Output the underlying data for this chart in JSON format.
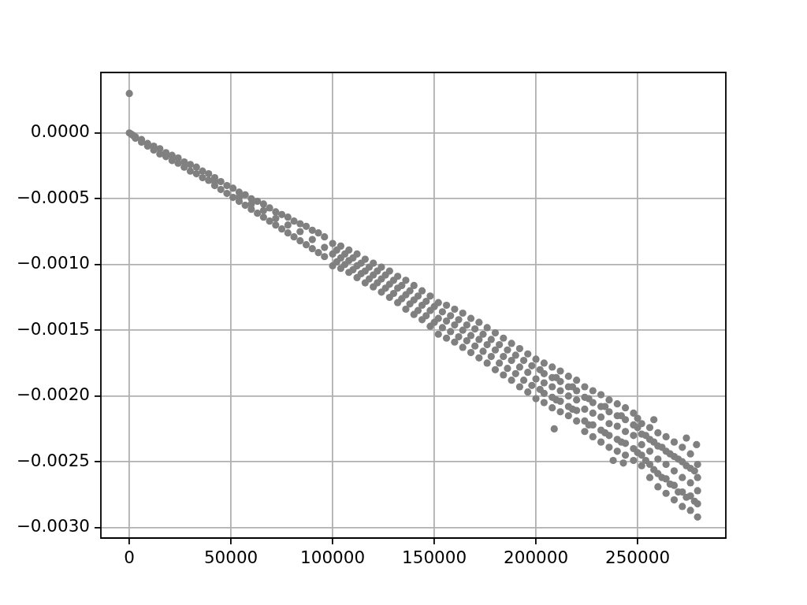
{
  "chart_data": {
    "type": "scatter",
    "color": "#808080",
    "marker": "circle",
    "grid": true,
    "xlim": [
      -14000,
      293400
    ],
    "ylim": [
      -0.00308,
      0.00046
    ],
    "xticks": [
      0,
      50000,
      100000,
      150000,
      200000,
      250000
    ],
    "yticks": [
      {
        "value": 0,
        "label": "0.0000"
      },
      {
        "value": -0.0005,
        "label": "−0.0005"
      },
      {
        "value": -0.001,
        "label": "−0.0010"
      },
      {
        "value": -0.0015,
        "label": "−0.0015"
      },
      {
        "value": -0.002,
        "label": "−0.0020"
      },
      {
        "value": -0.0025,
        "label": "−0.0025"
      },
      {
        "value": -0.003,
        "label": "−0.0030"
      }
    ],
    "x": [
      0,
      0,
      1000,
      2000,
      3000,
      3000,
      6000,
      6000,
      9000,
      9000,
      12000,
      12000,
      15000,
      15000,
      18000,
      18000,
      21000,
      21000,
      24000,
      24000,
      27000,
      27000,
      30000,
      30000,
      33000,
      33000,
      36000,
      36000,
      39000,
      39000,
      42000,
      42000,
      42000,
      45000,
      45000,
      48000,
      48000,
      51000,
      51000,
      54000,
      54000,
      54000,
      57000,
      57000,
      60000,
      60000,
      60000,
      63000,
      63000,
      66000,
      66000,
      66000,
      69000,
      69000,
      72000,
      72000,
      72000,
      75000,
      75000,
      78000,
      78000,
      78000,
      81000,
      81000,
      84000,
      84000,
      84000,
      87000,
      87000,
      90000,
      90000,
      90000,
      93000,
      93000,
      96000,
      96000,
      96000,
      100000,
      100000,
      100000,
      104000,
      104000,
      108000,
      108000,
      108000,
      112000,
      112000,
      116000,
      116000,
      116000,
      120000,
      120000,
      124000,
      124000,
      124000,
      128000,
      128000,
      132000,
      132000,
      132000,
      136000,
      136000,
      140000,
      140000,
      140000,
      144000,
      144000,
      148000,
      148000,
      148000,
      152000,
      152000,
      156000,
      156000,
      156000,
      160000,
      160000,
      164000,
      164000,
      164000,
      168000,
      168000,
      172000,
      172000,
      172000,
      176000,
      176000,
      180000,
      180000,
      180000,
      184000,
      184000,
      188000,
      188000,
      188000,
      192000,
      192000,
      196000,
      196000,
      196000,
      200000,
      200000,
      200000,
      204000,
      204000,
      208000,
      208000,
      208000,
      209000,
      212000,
      212000,
      216000,
      216000,
      216000,
      220000,
      220000,
      224000,
      224000,
      224000,
      228000,
      228000,
      232000,
      232000,
      232000,
      236000,
      236000,
      238000,
      240000,
      240000,
      240000,
      243000,
      244000,
      244000,
      248000,
      248000,
      248000,
      250000,
      252000,
      252000,
      252000,
      256000,
      256000,
      256000,
      258000,
      260000,
      260000,
      260000,
      264000,
      264000,
      264000,
      268000,
      268000,
      268000,
      272000,
      272000,
      272000,
      274000,
      276000,
      276000,
      276000,
      279000,
      279500,
      279500,
      279500,
      104000,
      112000,
      120000,
      128000,
      136000,
      144000,
      152000,
      160000,
      168000,
      176000,
      184000,
      192000,
      204000,
      212000,
      220000,
      228000,
      236000,
      244000,
      202000,
      202000,
      210000,
      210000,
      218000,
      218000,
      226000,
      226000,
      234000,
      234000,
      242000,
      242000,
      250000,
      250000,
      254000,
      254000,
      258000,
      258000,
      262000,
      262000,
      266000,
      266000,
      270000,
      270000,
      274000,
      274000,
      278000,
      278000,
      102000,
      102000,
      106000,
      106000,
      110000,
      110000,
      114000,
      114000,
      118000,
      118000,
      122000,
      122000,
      126000,
      126000,
      130000,
      130000,
      134000,
      134000,
      138000,
      138000,
      142000,
      142000,
      146000,
      146000,
      150000,
      150000,
      154000,
      154000,
      158000,
      158000,
      162000,
      162000,
      166000,
      166000,
      170000,
      170000,
      174000,
      174000,
      178000,
      178000,
      182000,
      182000,
      186000,
      186000,
      190000,
      190000,
      194000,
      194000,
      198000,
      198000,
      204000,
      204000,
      208000,
      208000,
      212000,
      212000,
      216000,
      216000,
      220000,
      220000,
      224000,
      224000,
      228000,
      228000,
      232000,
      232000,
      236000,
      236000,
      240000,
      240000,
      244000,
      244000,
      248000,
      248000,
      252000,
      252000,
      256000,
      256000,
      260000,
      260000,
      264000,
      264000,
      268000,
      268000,
      272000,
      272000,
      276000,
      276000,
      279500,
      279500
    ],
    "values": [
      0.0003,
      0,
      -1e-05,
      -2e-05,
      -3e-05,
      -4e-05,
      -5e-05,
      -7e-05,
      -8e-05,
      -0.0001,
      -0.0001,
      -0.00013,
      -0.00012,
      -0.00016,
      -0.00015,
      -0.00018,
      -0.00017,
      -0.00021,
      -0.00019,
      -0.00023,
      -0.00022,
      -0.00026,
      -0.00024,
      -0.00029,
      -0.00026,
      -0.00031,
      -0.00029,
      -0.00034,
      -0.00031,
      -0.00036,
      -0.00034,
      -0.0004,
      -0.00037,
      -0.00037,
      -0.00043,
      -0.0004,
      -0.00046,
      -0.00042,
      -0.00049,
      -0.00045,
      -0.00052,
      -0.00049,
      -0.00047,
      -0.00055,
      -0.0005,
      -0.00058,
      -0.00054,
      -0.00052,
      -0.00061,
      -0.00054,
      -0.00064,
      -0.00059,
      -0.00057,
      -0.00067,
      -0.0006,
      -0.0007,
      -0.00065,
      -0.00062,
      -0.00073,
      -0.00064,
      -0.00076,
      -0.0007,
      -0.00067,
      -0.00079,
      -0.00069,
      -0.00082,
      -0.00075,
      -0.00071,
      -0.00085,
      -0.00074,
      -0.00088,
      -0.00081,
      -0.00076,
      -0.00091,
      -0.00079,
      -0.00094,
      -0.00087,
      -0.00084,
      -0.00101,
      -0.00092,
      -0.00086,
      -0.00103,
      -0.00089,
      -0.00106,
      -0.00097,
      -0.00092,
      -0.0011,
      -0.00096,
      -0.00114,
      -0.00105,
      -0.00099,
      -0.00117,
      -0.00102,
      -0.00121,
      -0.00111,
      -0.00105,
      -0.00125,
      -0.00109,
      -0.00129,
      -0.00118,
      -0.00112,
      -0.00134,
      -0.00116,
      -0.00138,
      -0.00127,
      -0.0012,
      -0.00142,
      -0.00124,
      -0.00147,
      -0.00135,
      -0.00129,
      -0.00153,
      -0.00131,
      -0.00156,
      -0.00143,
      -0.00134,
      -0.00159,
      -0.00137,
      -0.00163,
      -0.0015,
      -0.00141,
      -0.00167,
      -0.00144,
      -0.00171,
      -0.00157,
      -0.00148,
      -0.00175,
      -0.00152,
      -0.0018,
      -0.00165,
      -0.00156,
      -0.00184,
      -0.0016,
      -0.00188,
      -0.00173,
      -0.00164,
      -0.00193,
      -0.00168,
      -0.00197,
      -0.00182,
      -0.00172,
      -0.00202,
      -0.00187,
      -0.00175,
      -0.00205,
      -0.00178,
      -0.00209,
      -0.00193,
      -0.00225,
      -0.00181,
      -0.00212,
      -0.00185,
      -0.00215,
      -0.002,
      -0.00188,
      -0.00219,
      -0.00193,
      -0.00227,
      -0.0021,
      -0.00196,
      -0.00231,
      -0.00199,
      -0.00235,
      -0.00216,
      -0.00203,
      -0.00239,
      -0.00249,
      -0.00206,
      -0.00242,
      -0.00223,
      -0.00251,
      -0.00209,
      -0.00245,
      -0.00213,
      -0.00249,
      -0.0023,
      -0.00217,
      -0.00221,
      -0.00253,
      -0.00237,
      -0.00224,
      -0.00262,
      -0.00242,
      -0.00218,
      -0.00228,
      -0.00269,
      -0.00248,
      -0.00231,
      -0.00274,
      -0.00252,
      -0.00235,
      -0.00279,
      -0.00257,
      -0.00239,
      -0.00284,
      -0.00262,
      -0.00232,
      -0.00244,
      -0.00287,
      -0.00266,
      -0.00237,
      -0.00252,
      -0.00272,
      -0.00292,
      -0.00095,
      -0.00101,
      -0.00108,
      -0.00115,
      -0.00123,
      -0.00131,
      -0.00141,
      -0.00146,
      -0.00154,
      -0.00161,
      -0.0017,
      -0.00178,
      -0.0019,
      -0.00196,
      -0.00203,
      -0.00213,
      -0.00221,
      -0.00227,
      -0.0018,
      -0.00195,
      -0.00186,
      -0.00203,
      -0.00193,
      -0.0021,
      -0.00202,
      -0.00222,
      -0.00208,
      -0.00228,
      -0.00215,
      -0.00235,
      -0.00224,
      -0.00243,
      -0.0023,
      -0.00249,
      -0.00235,
      -0.00256,
      -0.00239,
      -0.00262,
      -0.00244,
      -0.00267,
      -0.00248,
      -0.00273,
      -0.00253,
      -0.00277,
      -0.00257,
      -0.0028,
      -0.00089,
      -0.00098,
      -0.00092,
      -0.001,
      -0.00095,
      -0.00104,
      -0.00099,
      -0.00107,
      -0.00102,
      -0.00111,
      -0.00105,
      -0.00114,
      -0.00108,
      -0.00118,
      -0.00112,
      -0.00122,
      -0.00116,
      -0.00126,
      -0.0012,
      -0.0013,
      -0.00124,
      -0.00135,
      -0.00128,
      -0.00139,
      -0.00132,
      -0.00144,
      -0.00136,
      -0.00148,
      -0.00139,
      -0.00151,
      -0.00142,
      -0.00155,
      -0.00146,
      -0.00158,
      -0.00149,
      -0.00162,
      -0.00153,
      -0.00166,
      -0.00157,
      -0.0017,
      -0.00161,
      -0.00175,
      -0.00165,
      -0.00179,
      -0.00169,
      -0.00183,
      -0.00173,
      -0.00188,
      -0.00177,
      -0.00192,
      -0.00183,
      -0.00198,
      -0.00186,
      -0.00201,
      -0.00189,
      -0.00204,
      -0.00193,
      -0.00208,
      -0.00196,
      -0.00211,
      -0.00201,
      -0.00219,
      -0.00205,
      -0.00222,
      -0.00208,
      -0.00226,
      -0.00212,
      -0.0023,
      -0.00215,
      -0.00233,
      -0.00218,
      -0.00236,
      -0.00222,
      -0.0024,
      -0.00229,
      -0.00245,
      -0.00233,
      -0.00252,
      -0.00238,
      -0.00259,
      -0.00242,
      -0.00263,
      -0.00246,
      -0.00268,
      -0.0025,
      -0.00273,
      -0.00255,
      -0.00276,
      -0.00262,
      -0.00282
    ]
  }
}
